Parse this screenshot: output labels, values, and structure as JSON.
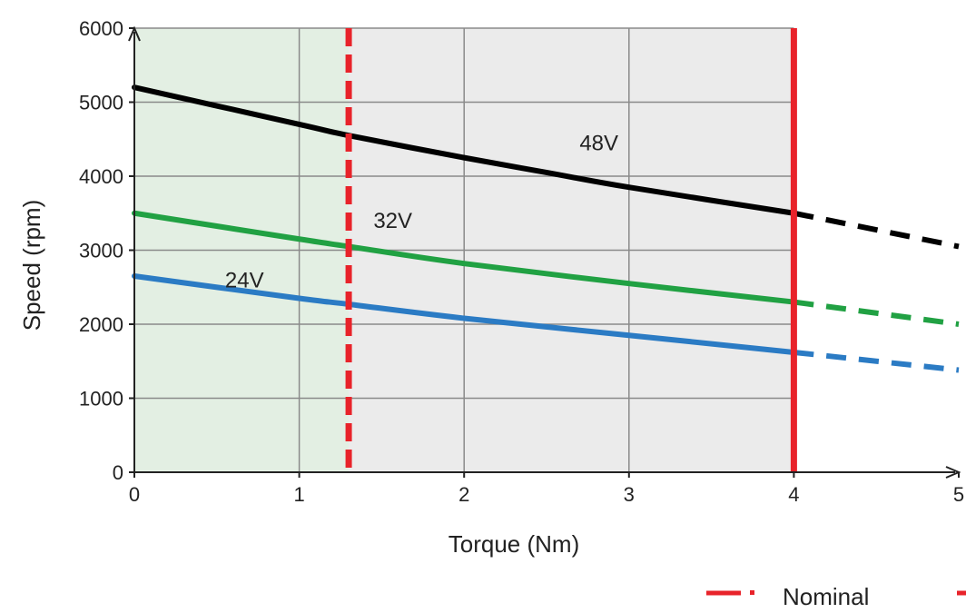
{
  "chart_data": {
    "type": "line",
    "xlabel": "Torque (Nm)",
    "ylabel": "Speed (rpm)",
    "xlim": [
      0,
      5
    ],
    "ylim": [
      0,
      6000
    ],
    "x_ticks": [
      "0",
      "1",
      "2",
      "3",
      "4",
      "5"
    ],
    "y_ticks": [
      "0",
      "1000",
      "2000",
      "3000",
      "4000",
      "5000",
      "6000"
    ],
    "grid": true,
    "regions": [
      {
        "x_from": 0,
        "x_to": 1.3,
        "color": "#e3efe3"
      },
      {
        "x_from": 1.3,
        "x_to": 4,
        "color": "#ebebeb"
      }
    ],
    "vertical_lines": [
      {
        "x": 1.3,
        "style": "dashed",
        "color": "#e8232a",
        "legend": "Nominal"
      },
      {
        "x": 4,
        "style": "solid",
        "color": "#e8232a"
      }
    ],
    "series": [
      {
        "name": "48V",
        "color": "#000000",
        "solid_until": 4,
        "x": [
          0,
          1,
          1.3,
          2,
          2.5,
          3,
          4,
          5
        ],
        "y": [
          5200,
          4700,
          4550,
          4250,
          4050,
          3850,
          3500,
          3050
        ]
      },
      {
        "name": "32V",
        "color": "#21a143",
        "solid_until": 4,
        "x": [
          0,
          1,
          1.3,
          2,
          3,
          4,
          5
        ],
        "y": [
          3500,
          3150,
          3050,
          2820,
          2550,
          2300,
          2000
        ]
      },
      {
        "name": "24V",
        "color": "#2b7bc4",
        "solid_until": 4,
        "x": [
          0,
          1,
          1.3,
          2,
          3,
          4,
          5
        ],
        "y": [
          2650,
          2350,
          2270,
          2080,
          1850,
          1620,
          1380
        ]
      }
    ],
    "legend": {
      "position": "bottom-right",
      "entries": [
        "Nominal"
      ]
    }
  }
}
